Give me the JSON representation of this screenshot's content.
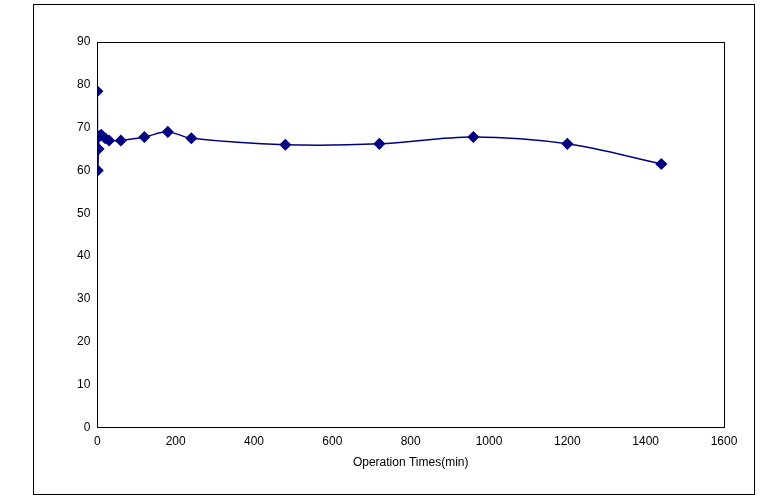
{
  "chart_data": {
    "type": "line",
    "x_label": "Operation Times(min)",
    "x": [
      0,
      1,
      3,
      5,
      10,
      20,
      30,
      60,
      120,
      180,
      240,
      480,
      720,
      960,
      1200,
      1440
    ],
    "values": [
      78.5,
      60,
      65,
      68,
      68.3,
      67.5,
      67,
      67,
      67.8,
      69,
      67.5,
      66,
      66.2,
      67.8,
      66.2,
      61.5
    ],
    "color": "#000080",
    "marker": "diamond",
    "line_style": "solid",
    "xlim": [
      0,
      1600
    ],
    "xticks": [
      0,
      200,
      400,
      600,
      800,
      1000,
      1200,
      1400,
      1600
    ],
    "ylim": [
      0,
      90
    ],
    "yticks": [
      0,
      10,
      20,
      30,
      40,
      50,
      60,
      70,
      80,
      90
    ],
    "grid": false
  }
}
